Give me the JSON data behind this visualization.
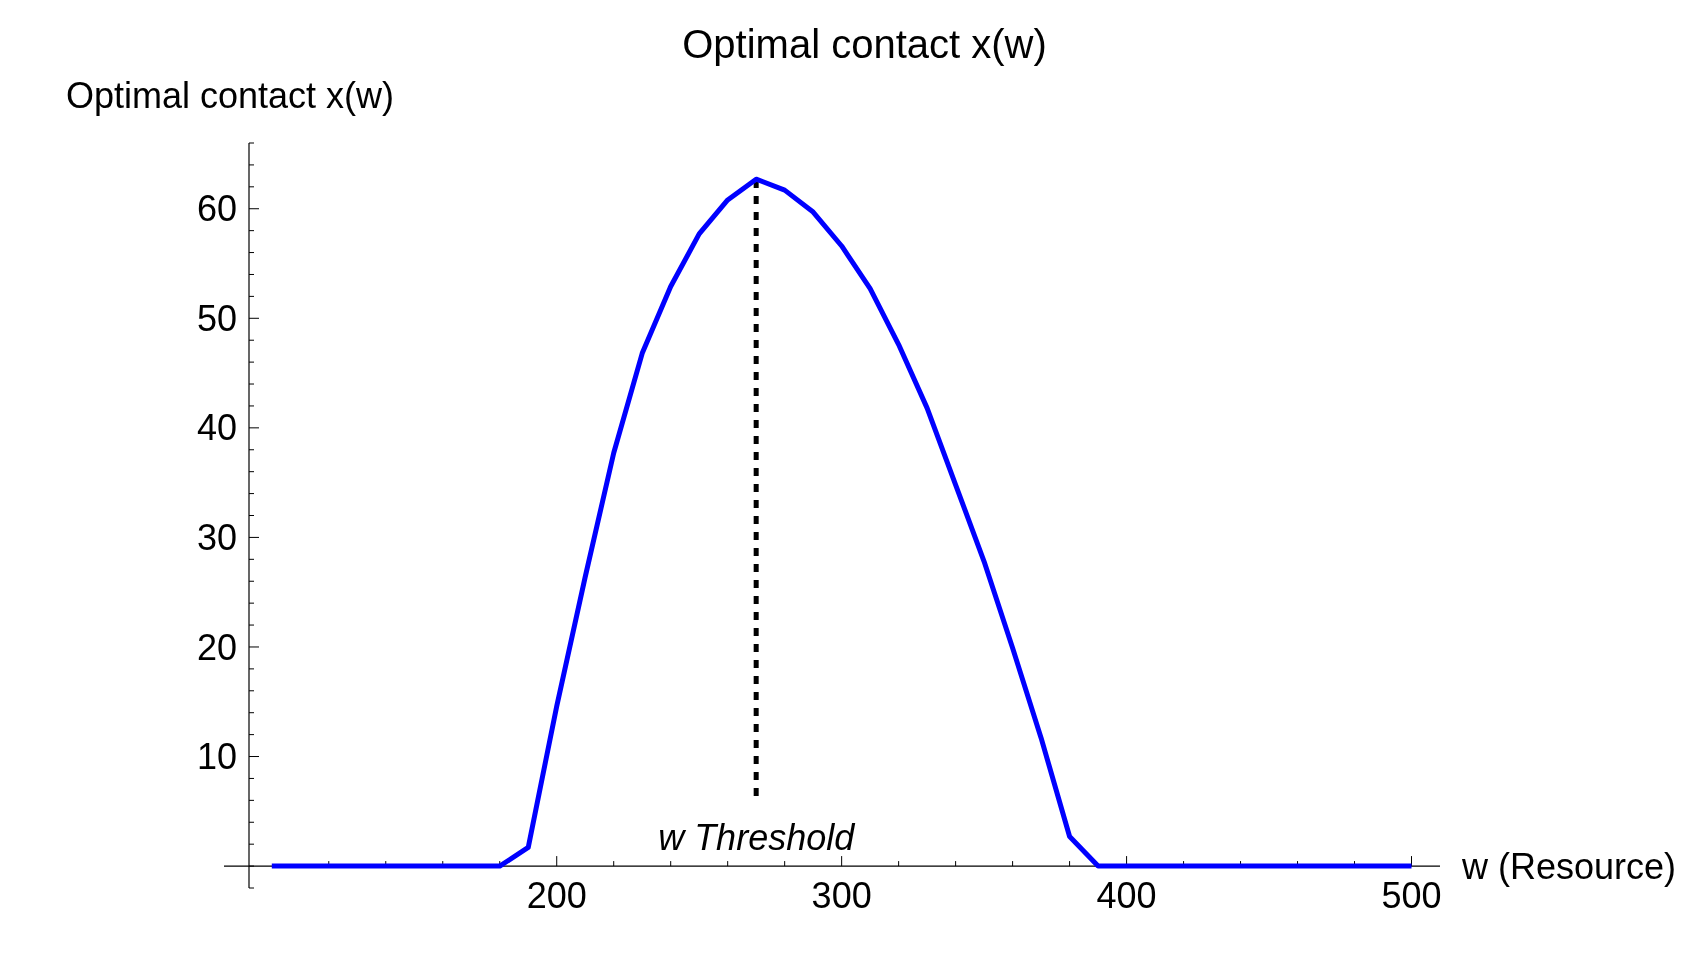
{
  "chart_data": {
    "type": "line",
    "title": "Optimal contact x(w)",
    "ylabel": "Optimal contact x(w)",
    "xlabel": "w (Resource)",
    "x": [
      100,
      180,
      190,
      200,
      210,
      220,
      230,
      240,
      250,
      260,
      270,
      280,
      290,
      300,
      310,
      320,
      330,
      340,
      350,
      360,
      370,
      380,
      390,
      500
    ],
    "series": [
      {
        "color": "#0000ff",
        "values": [
          0,
          0,
          1.7,
          14.6,
          26.4,
          37.7,
          46.8,
          52.9,
          57.7,
          60.8,
          62.7,
          61.7,
          59.7,
          56.6,
          52.7,
          47.6,
          41.8,
          34.8,
          27.8,
          19.9,
          11.7,
          2.7,
          0,
          0
        ]
      }
    ],
    "xlim": [
      92,
      510
    ],
    "ylim": [
      -2,
      66
    ],
    "xticks": [
      {
        "value": 120,
        "label": null
      },
      {
        "value": 140,
        "label": null
      },
      {
        "value": 160,
        "label": null
      },
      {
        "value": 180,
        "label": null
      },
      200,
      {
        "value": 220,
        "label": null
      },
      {
        "value": 240,
        "label": null
      },
      {
        "value": 260,
        "label": null
      },
      {
        "value": 280,
        "label": null
      },
      300,
      {
        "value": 320,
        "label": null
      },
      {
        "value": 340,
        "label": null
      },
      {
        "value": 360,
        "label": null
      },
      {
        "value": 380,
        "label": null
      },
      400,
      {
        "value": 420,
        "label": null
      },
      {
        "value": 440,
        "label": null
      },
      {
        "value": 460,
        "label": null
      },
      {
        "value": 480,
        "label": null
      },
      500
    ],
    "yticks": [
      10,
      20,
      30,
      40,
      50,
      60
    ],
    "ref_lines": [
      {
        "axis": "x",
        "value": 270,
        "label": "w Threshold",
        "line_style": "dashed",
        "color": "#000000"
      }
    ],
    "line_style": "solid"
  }
}
